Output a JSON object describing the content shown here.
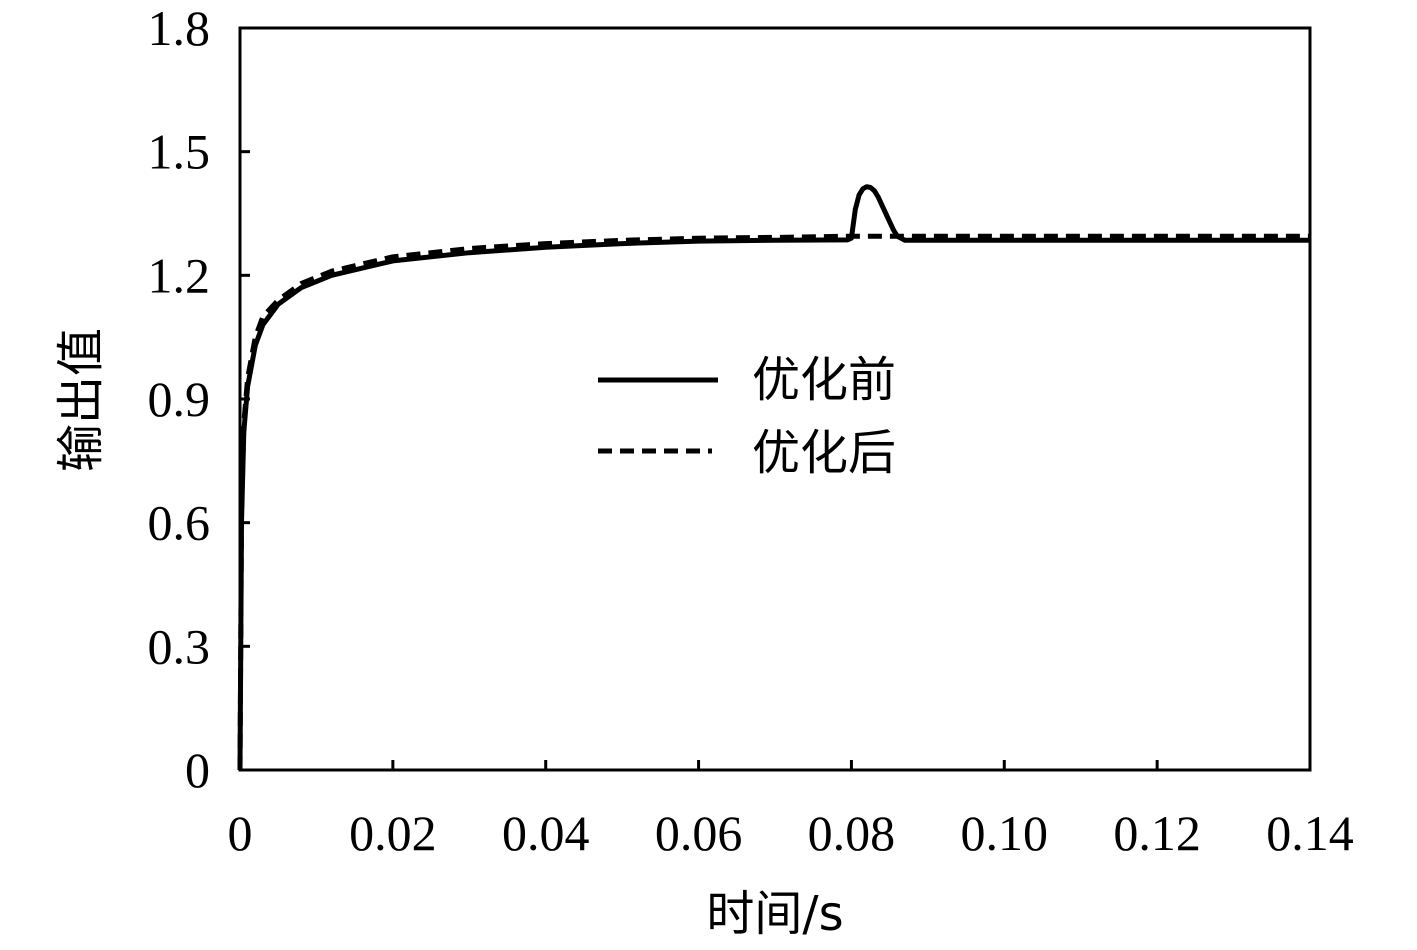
{
  "chart_data": {
    "type": "line",
    "xlabel": "时间/s",
    "ylabel": "输出值",
    "xlim": [
      0,
      0.14
    ],
    "ylim": [
      0,
      1.8
    ],
    "x_ticks": [
      {
        "value": 0,
        "label": "0"
      },
      {
        "value": 0.02,
        "label": "0.02"
      },
      {
        "value": 0.04,
        "label": "0.04"
      },
      {
        "value": 0.06,
        "label": "0.06"
      },
      {
        "value": 0.08,
        "label": "0.08"
      },
      {
        "value": 0.1,
        "label": "0.10"
      },
      {
        "value": 0.12,
        "label": "0.12"
      },
      {
        "value": 0.14,
        "label": "0.14"
      }
    ],
    "y_ticks": [
      {
        "value": 0,
        "label": "0"
      },
      {
        "value": 0.3,
        "label": "0.3"
      },
      {
        "value": 0.6,
        "label": "0.6"
      },
      {
        "value": 0.9,
        "label": "0.9"
      },
      {
        "value": 1.2,
        "label": "1.2"
      },
      {
        "value": 1.5,
        "label": "1.5"
      },
      {
        "value": 1.8,
        "label": "1.8"
      }
    ],
    "grid": false,
    "legend_position": "center",
    "series": [
      {
        "name": "优化前",
        "style": "solid",
        "color": "#000000",
        "x": [
          0,
          0.0002,
          0.0005,
          0.001,
          0.002,
          0.003,
          0.005,
          0.008,
          0.012,
          0.02,
          0.03,
          0.04,
          0.05,
          0.06,
          0.07,
          0.0795,
          0.08,
          0.0805,
          0.081,
          0.0815,
          0.082,
          0.0825,
          0.083,
          0.0835,
          0.084,
          0.085,
          0.0855,
          0.086,
          0.087,
          0.09,
          0.1,
          0.11,
          0.12,
          0.13,
          0.14
        ],
        "y": [
          0,
          0.6,
          0.82,
          0.93,
          1.03,
          1.08,
          1.13,
          1.17,
          1.2,
          1.235,
          1.255,
          1.268,
          1.277,
          1.283,
          1.285,
          1.286,
          1.29,
          1.36,
          1.395,
          1.41,
          1.415,
          1.413,
          1.405,
          1.39,
          1.37,
          1.33,
          1.31,
          1.295,
          1.285,
          1.285,
          1.285,
          1.285,
          1.285,
          1.285,
          1.285
        ]
      },
      {
        "name": "优化后",
        "style": "dashed",
        "color": "#000000",
        "x": [
          0,
          0.0002,
          0.0005,
          0.001,
          0.002,
          0.003,
          0.005,
          0.008,
          0.012,
          0.02,
          0.03,
          0.04,
          0.05,
          0.06,
          0.07,
          0.08,
          0.09,
          0.1,
          0.11,
          0.12,
          0.13,
          0.14
        ],
        "y": [
          0,
          0.62,
          0.84,
          0.95,
          1.05,
          1.1,
          1.14,
          1.18,
          1.21,
          1.245,
          1.265,
          1.277,
          1.285,
          1.29,
          1.292,
          1.295,
          1.295,
          1.295,
          1.295,
          1.295,
          1.295,
          1.295
        ]
      }
    ]
  }
}
